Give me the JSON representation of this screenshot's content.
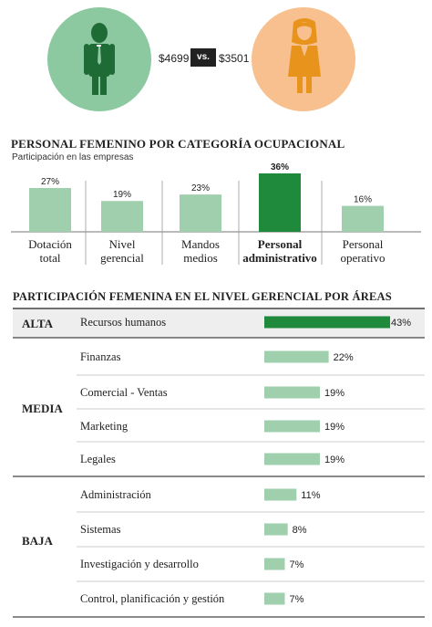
{
  "salary": {
    "men": "$4699",
    "vs": "vs.",
    "women": "$3501"
  },
  "colors": {
    "bar_light": "#9fcfac",
    "bar_dark": "#1f8a3c",
    "men_circle": "#8cc9a0",
    "women_circle": "#f7c08e",
    "man_figure": "#1f6b35",
    "woman_figure": "#e8931c"
  },
  "icons": {
    "men": "man-icon",
    "women": "woman-icon"
  },
  "chart_data": [
    {
      "type": "bar",
      "title": "PERSONAL FEMENINO POR CATEGORÍA OCUPACIONAL",
      "subtitle": "Participación en las empresas",
      "categories": [
        [
          "Dotación",
          "total"
        ],
        [
          "Nivel",
          "gerencial"
        ],
        [
          "Mandos",
          "medios"
        ],
        [
          "Personal",
          "administrativo"
        ],
        [
          "Personal",
          "operativo"
        ]
      ],
      "values": [
        27,
        19,
        23,
        36,
        16
      ],
      "value_labels": [
        "27%",
        "19%",
        "23%",
        "36%",
        "16%"
      ],
      "highlight_index": 3,
      "ylim": [
        0,
        36
      ]
    },
    {
      "type": "bar",
      "orientation": "horizontal",
      "title": "PARTICIPACIÓN FEMENINA EN EL NIVEL GERENCIAL POR ÁREAS",
      "tiers": [
        {
          "label": "ALTA",
          "items": [
            {
              "name": "Recursos humanos",
              "value": 43,
              "label": "43%"
            }
          ]
        },
        {
          "label": "MEDIA",
          "items": [
            {
              "name": "Finanzas",
              "value": 22,
              "label": "22%"
            },
            {
              "name": "Comercial - Ventas",
              "value": 19,
              "label": "19%"
            },
            {
              "name": "Marketing",
              "value": 19,
              "label": "19%"
            },
            {
              "name": "Legales",
              "value": 19,
              "label": "19%"
            }
          ]
        },
        {
          "label": "BAJA",
          "items": [
            {
              "name": "Administración",
              "value": 11,
              "label": "11%"
            },
            {
              "name": "Sistemas",
              "value": 8,
              "label": "8%"
            },
            {
              "name": "Investigación y desarrollo",
              "value": 7,
              "label": "7%"
            },
            {
              "name": "Control, planificación y gestión",
              "value": 7,
              "label": "7%"
            }
          ]
        }
      ],
      "xlim": [
        0,
        43
      ]
    }
  ]
}
